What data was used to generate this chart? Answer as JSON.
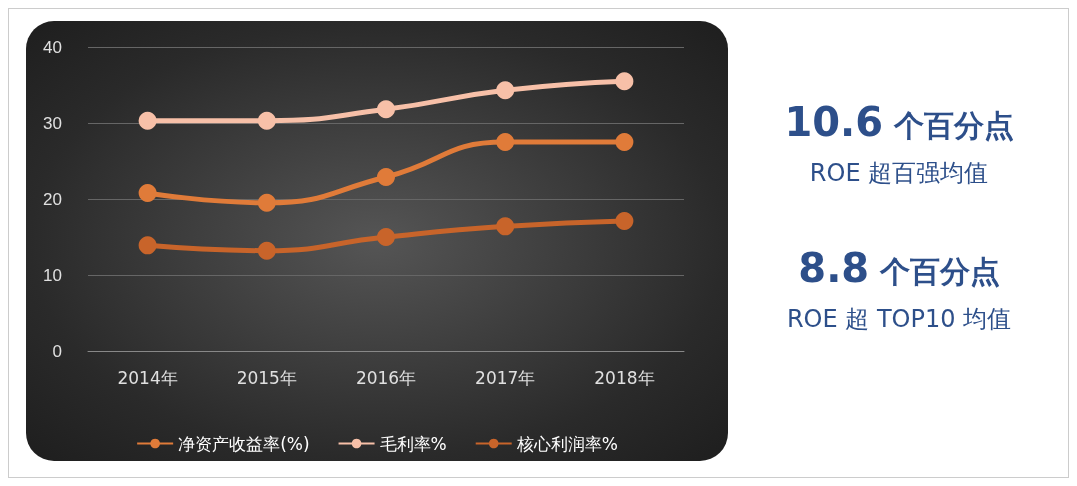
{
  "chart_data": {
    "type": "line",
    "categories": [
      "2014年",
      "2015年",
      "2016年",
      "2017年",
      "2018年"
    ],
    "series": [
      {
        "name": "净资产收益率(%)",
        "color": "#e07b39",
        "values": [
          20.8,
          19.5,
          22.9,
          27.5,
          27.5
        ]
      },
      {
        "name": "毛利率%",
        "color": "#f7c0a8",
        "values": [
          30.3,
          30.3,
          31.8,
          34.3,
          35.5
        ]
      },
      {
        "name": "核心利润率%",
        "color": "#c8642a",
        "values": [
          13.9,
          13.2,
          15.0,
          16.4,
          17.1
        ]
      }
    ],
    "ylim": [
      0,
      40
    ],
    "yticks": [
      0,
      10,
      20,
      30,
      40
    ],
    "grid": "y",
    "legend": "bottom",
    "marker": "circle",
    "line_style": "solid",
    "annotations": [
      "10.6 个百分点",
      "ROE 超百强均值",
      "8.8 个百分点",
      "ROE 超 TOP10 均值"
    ]
  }
}
